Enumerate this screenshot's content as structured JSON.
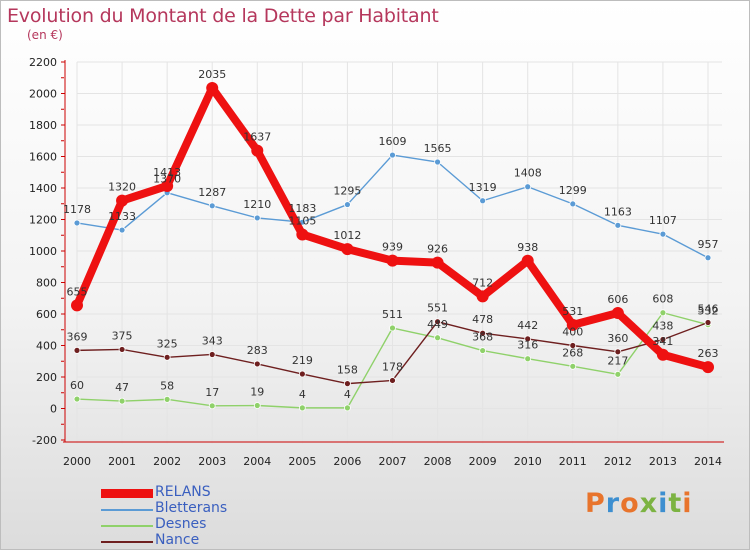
{
  "title": "Evolution du Montant de la Dette par Habitant",
  "subtitle": "(en €)",
  "logo_text": "Proxiti",
  "logo_colors": [
    "#e8742c",
    "#3d8fd0",
    "#e8742c",
    "#7cb342",
    "#3d8fd0",
    "#7cb342",
    "#e8742c"
  ],
  "chart_data": {
    "type": "line",
    "title": "Evolution du Montant de la Dette par Habitant",
    "subtitle": "(en €)",
    "xlabel": "",
    "ylabel": "",
    "ylim": [
      -200,
      2200
    ],
    "yticks": [
      -200,
      0,
      200,
      400,
      600,
      800,
      1000,
      1200,
      1400,
      1600,
      1800,
      2000,
      2200
    ],
    "grid": true,
    "legend": "bottom-left",
    "x": [
      "2000",
      "2001",
      "2002",
      "2003",
      "2004",
      "2005",
      "2006",
      "2007",
      "2008",
      "2009",
      "2010",
      "2011",
      "2012",
      "2013",
      "2014"
    ],
    "series": [
      {
        "name": "RELANS",
        "color": "#ee1111",
        "emphasis": true,
        "values": [
          655,
          1320,
          1413,
          2035,
          1637,
          1105,
          1012,
          939,
          926,
          712,
          938,
          531,
          606,
          341,
          263
        ]
      },
      {
        "name": "Bletterans",
        "color": "#5b9bd5",
        "values": [
          1178,
          1133,
          1370,
          1287,
          1210,
          1183,
          1295,
          1609,
          1565,
          1319,
          1408,
          1299,
          1163,
          1107,
          957
        ]
      },
      {
        "name": "Desnes",
        "color": "#8fd16a",
        "values": [
          60,
          47,
          58,
          17,
          19,
          4,
          4,
          511,
          449,
          368,
          316,
          268,
          217,
          608,
          532
        ]
      },
      {
        "name": "Nance",
        "color": "#6e1f1f",
        "values": [
          369,
          375,
          325,
          343,
          283,
          219,
          158,
          178,
          551,
          478,
          442,
          400,
          360,
          438,
          546
        ]
      }
    ]
  }
}
